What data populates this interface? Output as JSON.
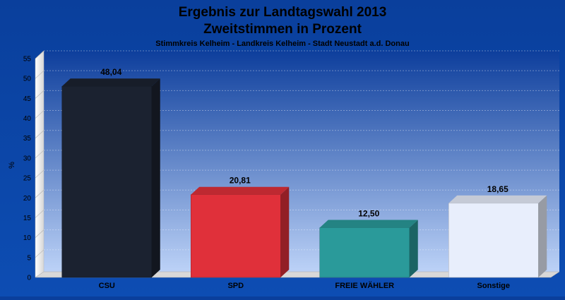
{
  "chart_data": {
    "type": "bar",
    "title": "Ergebnis zur Landtagswahl 2013",
    "title2": "Zweitstimmen in Prozent",
    "subtitle": "Stimmkreis Kelheim - Landkreis Kelheim - Stadt Neustadt a.d. Donau",
    "ylabel": "%",
    "xlabel": "",
    "ylim": [
      0,
      55
    ],
    "yticks": [
      0,
      5,
      10,
      15,
      20,
      25,
      30,
      35,
      40,
      45,
      50,
      55
    ],
    "grid": true,
    "categories": [
      "CSU",
      "SPD",
      "FREIE WÄHLER",
      "Sonstige"
    ],
    "values": [
      48.04,
      20.81,
      12.5,
      18.65
    ],
    "value_labels": [
      "48,04",
      "20,81",
      "12,50",
      "18,65"
    ],
    "colors": [
      "#1b2230",
      "#e0303a",
      "#2a9a9a",
      "#e8eefc"
    ]
  }
}
